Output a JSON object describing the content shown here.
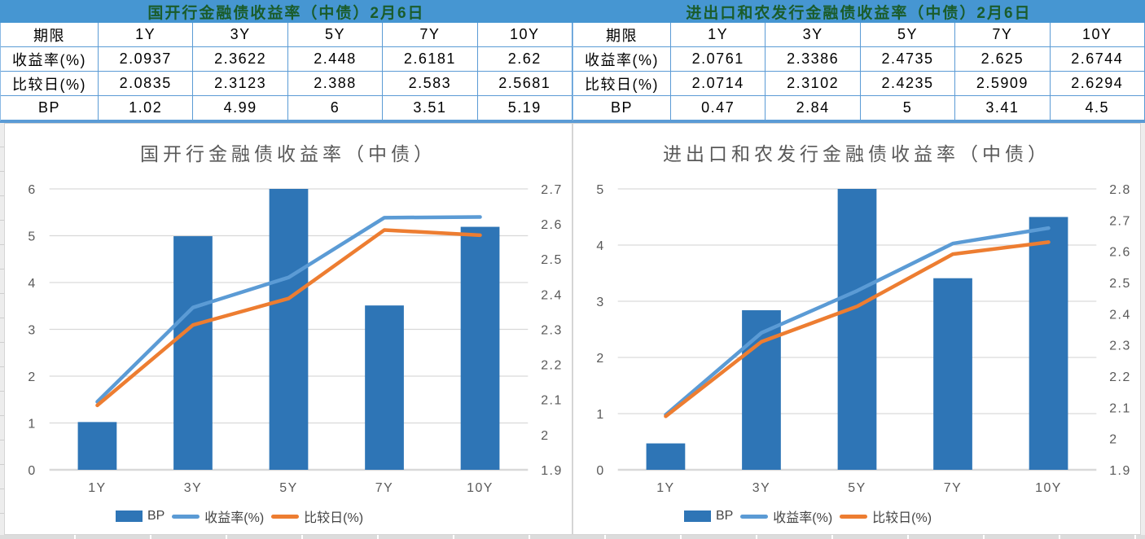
{
  "tables": [
    {
      "title": "国开行金融债收益率（中债）2月6日",
      "rows": [
        {
          "label": "期限",
          "values": [
            "1Y",
            "3Y",
            "5Y",
            "7Y",
            "10Y"
          ]
        },
        {
          "label": "收益率(%)",
          "values": [
            "2.0937",
            "2.3622",
            "2.448",
            "2.6181",
            "2.62"
          ]
        },
        {
          "label": "比较日(%)",
          "values": [
            "2.0835",
            "2.3123",
            "2.388",
            "2.583",
            "2.5681"
          ]
        },
        {
          "label": "BP",
          "values": [
            "1.02",
            "4.99",
            "6",
            "3.51",
            "5.19"
          ]
        }
      ]
    },
    {
      "title": "进出口和农发行金融债收益率（中债）2月6日",
      "rows": [
        {
          "label": "期限",
          "values": [
            "1Y",
            "3Y",
            "5Y",
            "7Y",
            "10Y"
          ]
        },
        {
          "label": "收益率(%)",
          "values": [
            "2.0761",
            "2.3386",
            "2.4735",
            "2.625",
            "2.6744"
          ]
        },
        {
          "label": "比较日(%)",
          "values": [
            "2.0714",
            "2.3102",
            "2.4235",
            "2.5909",
            "2.6294"
          ]
        },
        {
          "label": "BP",
          "values": [
            "0.47",
            "2.84",
            "5",
            "3.41",
            "4.5"
          ]
        }
      ]
    }
  ],
  "chart_data": [
    {
      "type": "bar",
      "subtype": "combo bar + dual-axis lines",
      "title": "国开行金融债收益率（中债）",
      "categories": [
        "1Y",
        "3Y",
        "5Y",
        "7Y",
        "10Y"
      ],
      "series": [
        {
          "name": "BP",
          "type": "bar",
          "axis": "left",
          "color": "#2E75B6",
          "values": [
            1.02,
            4.99,
            6,
            3.51,
            5.19
          ]
        },
        {
          "name": "收益率(%)",
          "type": "line",
          "axis": "right",
          "color": "#5B9BD5",
          "values": [
            2.0937,
            2.3622,
            2.448,
            2.6181,
            2.62
          ]
        },
        {
          "name": "比较日(%)",
          "type": "line",
          "axis": "right",
          "color": "#ED7D31",
          "values": [
            2.0835,
            2.3123,
            2.388,
            2.583,
            2.5681
          ]
        }
      ],
      "left_axis": {
        "min": 0,
        "max": 6,
        "step": 1
      },
      "right_axis": {
        "min": 1.9,
        "max": 2.7,
        "step": 0.1
      },
      "grid": "horizontal",
      "legend_position": "bottom"
    },
    {
      "type": "bar",
      "subtype": "combo bar + dual-axis lines",
      "title": "进出口和农发行金融债收益率（中债）",
      "categories": [
        "1Y",
        "3Y",
        "5Y",
        "7Y",
        "10Y"
      ],
      "series": [
        {
          "name": "BP",
          "type": "bar",
          "axis": "left",
          "color": "#2E75B6",
          "values": [
            0.47,
            2.84,
            5,
            3.41,
            4.5
          ]
        },
        {
          "name": "收益率(%)",
          "type": "line",
          "axis": "right",
          "color": "#5B9BD5",
          "values": [
            2.0761,
            2.3386,
            2.4735,
            2.625,
            2.6744
          ]
        },
        {
          "name": "比较日(%)",
          "type": "line",
          "axis": "right",
          "color": "#ED7D31",
          "values": [
            2.0714,
            2.3102,
            2.4235,
            2.5909,
            2.6294
          ]
        }
      ],
      "left_axis": {
        "min": 0,
        "max": 5,
        "step": 1
      },
      "right_axis": {
        "min": 1.9,
        "max": 2.8,
        "step": 0.1
      },
      "grid": "horizontal",
      "legend_position": "bottom"
    }
  ],
  "colors": {
    "table_header_bg": "#4696D2",
    "table_header_text": "#1A5C2B",
    "table_border": "#5B9BD5",
    "bar": "#2E75B6",
    "yield_line": "#5B9BD5",
    "compare_line": "#ED7D31",
    "axis_text": "#595959",
    "gridline": "#D9D9D9"
  }
}
